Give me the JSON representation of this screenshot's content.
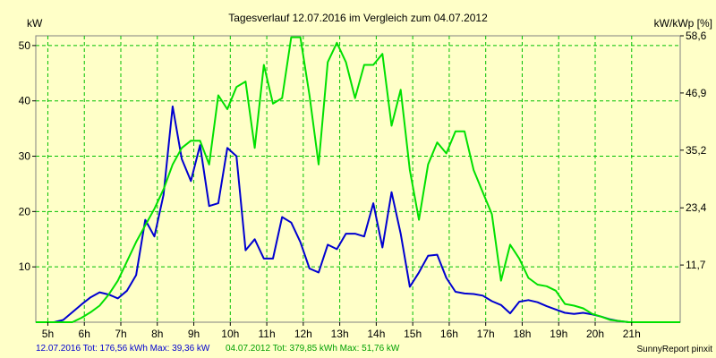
{
  "chart_data": {
    "type": "line",
    "title": "Tagesverlauf 12.07.2016 im Vergleich zum 04.07.2012",
    "ylabel_left": "kW",
    "ylabel_right": "kW/kWp [%]",
    "xlim": [
      4.67,
      22.33
    ],
    "ylim": [
      0,
      51.76
    ],
    "ylim_right": [
      0,
      58.6
    ],
    "x_ticks": [
      5,
      6,
      7,
      8,
      9,
      10,
      11,
      12,
      13,
      14,
      15,
      16,
      17,
      18,
      19,
      20,
      21
    ],
    "x_tick_labels": [
      "5h",
      "6h",
      "7h",
      "8h",
      "9h",
      "10h",
      "11h",
      "12h",
      "13h",
      "14h",
      "15h",
      "16h",
      "17h",
      "18h",
      "19h",
      "20h",
      "21h"
    ],
    "y_ticks_left": [
      10,
      20,
      30,
      40,
      50
    ],
    "y_tick_labels_left": [
      "10",
      "20",
      "30",
      "40",
      "50"
    ],
    "y_ticks_right": [
      11.7,
      23.4,
      35.2,
      46.9,
      58.6
    ],
    "y_tick_labels_right": [
      "11,7",
      "23,4",
      "35,2",
      "46,9",
      "58,6"
    ],
    "grid": true,
    "colors": {
      "background": "#ffffc8",
      "plot_background": "#ffffc8",
      "grid": "#00c000",
      "series_2016": "#0000d0",
      "series_2012": "#00e000"
    },
    "series": [
      {
        "name": "12.07.2016",
        "color": "#0000d0",
        "points": [
          [
            4.67,
            0
          ],
          [
            5.17,
            0
          ],
          [
            5.42,
            0.4
          ],
          [
            5.67,
            1.8
          ],
          [
            5.92,
            3.2
          ],
          [
            6.17,
            4.5
          ],
          [
            6.42,
            5.4
          ],
          [
            6.67,
            5.0
          ],
          [
            6.92,
            4.3
          ],
          [
            7.17,
            5.7
          ],
          [
            7.42,
            8.5
          ],
          [
            7.67,
            18.5
          ],
          [
            7.92,
            15.5
          ],
          [
            8.17,
            23.0
          ],
          [
            8.42,
            39.0
          ],
          [
            8.67,
            29.5
          ],
          [
            8.92,
            25.5
          ],
          [
            9.17,
            32.0
          ],
          [
            9.42,
            21.0
          ],
          [
            9.67,
            21.5
          ],
          [
            9.92,
            31.5
          ],
          [
            10.17,
            30.0
          ],
          [
            10.42,
            13.0
          ],
          [
            10.67,
            15.0
          ],
          [
            10.92,
            11.5
          ],
          [
            11.17,
            11.5
          ],
          [
            11.42,
            19.0
          ],
          [
            11.67,
            18.0
          ],
          [
            11.92,
            14.5
          ],
          [
            12.17,
            9.7
          ],
          [
            12.42,
            9.0
          ],
          [
            12.67,
            14.0
          ],
          [
            12.92,
            13.2
          ],
          [
            13.17,
            16.0
          ],
          [
            13.42,
            16.0
          ],
          [
            13.67,
            15.5
          ],
          [
            13.92,
            21.5
          ],
          [
            14.17,
            13.5
          ],
          [
            14.42,
            23.5
          ],
          [
            14.67,
            16.0
          ],
          [
            14.92,
            6.4
          ],
          [
            15.17,
            9.0
          ],
          [
            15.42,
            12.0
          ],
          [
            15.67,
            12.2
          ],
          [
            15.92,
            8.0
          ],
          [
            16.17,
            5.5
          ],
          [
            16.42,
            5.2
          ],
          [
            16.67,
            5.1
          ],
          [
            16.92,
            4.8
          ],
          [
            17.17,
            3.8
          ],
          [
            17.42,
            3.1
          ],
          [
            17.67,
            1.6
          ],
          [
            17.92,
            3.7
          ],
          [
            18.17,
            4.0
          ],
          [
            18.42,
            3.6
          ],
          [
            18.67,
            2.9
          ],
          [
            18.92,
            2.3
          ],
          [
            19.17,
            1.7
          ],
          [
            19.42,
            1.5
          ],
          [
            19.67,
            1.7
          ],
          [
            19.92,
            1.4
          ],
          [
            20.17,
            1.0
          ],
          [
            20.42,
            0.5
          ],
          [
            20.67,
            0.2
          ],
          [
            20.92,
            0
          ],
          [
            22.33,
            0
          ]
        ]
      },
      {
        "name": "04.07.2012",
        "color": "#00e000",
        "points": [
          [
            4.67,
            0
          ],
          [
            5.67,
            0
          ],
          [
            5.92,
            0.8
          ],
          [
            6.17,
            1.8
          ],
          [
            6.42,
            3.0
          ],
          [
            6.67,
            5.0
          ],
          [
            6.92,
            7.5
          ],
          [
            7.17,
            11.0
          ],
          [
            7.42,
            14.5
          ],
          [
            7.67,
            17.5
          ],
          [
            7.92,
            20.5
          ],
          [
            8.17,
            24.0
          ],
          [
            8.42,
            28.5
          ],
          [
            8.67,
            31.5
          ],
          [
            8.92,
            32.8
          ],
          [
            9.17,
            32.8
          ],
          [
            9.42,
            28.5
          ],
          [
            9.67,
            41.0
          ],
          [
            9.92,
            38.5
          ],
          [
            10.17,
            42.5
          ],
          [
            10.42,
            43.5
          ],
          [
            10.67,
            31.5
          ],
          [
            10.92,
            46.5
          ],
          [
            11.17,
            39.5
          ],
          [
            11.42,
            40.5
          ],
          [
            11.67,
            51.5
          ],
          [
            11.92,
            51.5
          ],
          [
            12.17,
            41.0
          ],
          [
            12.42,
            28.5
          ],
          [
            12.67,
            47.0
          ],
          [
            12.92,
            50.5
          ],
          [
            13.17,
            47.0
          ],
          [
            13.42,
            40.5
          ],
          [
            13.67,
            46.5
          ],
          [
            13.92,
            46.5
          ],
          [
            14.17,
            48.5
          ],
          [
            14.42,
            35.5
          ],
          [
            14.67,
            42.0
          ],
          [
            14.92,
            27.5
          ],
          [
            15.17,
            18.5
          ],
          [
            15.42,
            28.5
          ],
          [
            15.67,
            32.5
          ],
          [
            15.92,
            30.5
          ],
          [
            16.17,
            34.5
          ],
          [
            16.42,
            34.5
          ],
          [
            16.67,
            27.5
          ],
          [
            16.92,
            23.5
          ],
          [
            17.17,
            19.5
          ],
          [
            17.42,
            7.5
          ],
          [
            17.67,
            14.0
          ],
          [
            17.92,
            11.5
          ],
          [
            18.17,
            8.0
          ],
          [
            18.42,
            6.8
          ],
          [
            18.67,
            6.5
          ],
          [
            18.92,
            5.7
          ],
          [
            19.17,
            3.3
          ],
          [
            19.42,
            3.0
          ],
          [
            19.67,
            2.5
          ],
          [
            19.92,
            1.5
          ],
          [
            20.17,
            1.0
          ],
          [
            20.42,
            0.4
          ],
          [
            20.67,
            0.2
          ],
          [
            20.92,
            0
          ],
          [
            22.33,
            0
          ]
        ]
      }
    ],
    "footer": {
      "legend_2016": "12.07.2016 Tot: 176,56 kWh Max: 39,36 kW",
      "legend_2012": "04.07.2012 Tot: 379,85 kWh Max: 51,76 kW",
      "credit": "SunnyReport pinxit"
    }
  }
}
